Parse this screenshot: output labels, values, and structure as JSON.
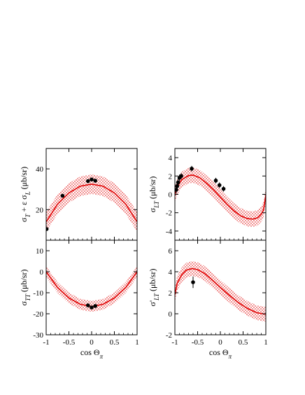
{
  "chart_data": [
    {
      "id": "sigma-t-l",
      "type": "scatter",
      "ylabel_main": "σ",
      "ylabel_parts": [
        {
          "t": "σ",
          "sub": false
        },
        {
          "t": "T",
          "sub": true
        },
        {
          "t": " + ε σ",
          "sub": false
        },
        {
          "t": "L",
          "sub": true
        },
        {
          "t": " (μb/sr)",
          "sub": false
        }
      ],
      "xlabel": "",
      "xlim": [
        -1,
        1
      ],
      "ylim": [
        5,
        50
      ],
      "yticks": [
        20,
        40
      ],
      "xticks": [
        -1,
        -0.5,
        0,
        0.5,
        1
      ],
      "show_xtick_labels": false,
      "points": [
        {
          "x": -0.99,
          "y": 10.5,
          "err": 0.8
        },
        {
          "x": -0.64,
          "y": 26.8,
          "err": 0.9
        },
        {
          "x": -0.08,
          "y": 34.0,
          "err": 0.9
        },
        {
          "x": 0.0,
          "y": 34.8,
          "err": 0.9
        },
        {
          "x": 0.08,
          "y": 34.2,
          "err": 0.9
        }
      ],
      "curve": [
        [
          -1,
          14.0
        ],
        [
          -0.75,
          22.7
        ],
        [
          -0.5,
          28.2
        ],
        [
          -0.25,
          31.5
        ],
        [
          0,
          32.5
        ],
        [
          0.25,
          31.5
        ],
        [
          0.5,
          28.2
        ],
        [
          0.75,
          22.7
        ],
        [
          1,
          14.0
        ]
      ],
      "band_halfwidth": 4.8
    },
    {
      "id": "sigma-lt",
      "type": "scatter",
      "ylabel_parts": [
        {
          "t": "σ",
          "sub": false
        },
        {
          "t": "LT",
          "sub": true
        },
        {
          "t": " (μb/sr)",
          "sub": false
        }
      ],
      "xlabel": "",
      "xlim": [
        -1,
        1
      ],
      "ylim": [
        -5,
        5
      ],
      "yticks": [
        -4,
        -2,
        0,
        2,
        4
      ],
      "xticks": [
        -1,
        -0.5,
        0,
        0.5,
        1
      ],
      "show_xtick_labels": false,
      "points": [
        {
          "x": -0.97,
          "y": 0.5,
          "err": 0.4
        },
        {
          "x": -0.95,
          "y": 0.9,
          "err": 0.4
        },
        {
          "x": -0.93,
          "y": 1.3,
          "err": 0.4
        },
        {
          "x": -0.9,
          "y": 1.8,
          "err": 0.35
        },
        {
          "x": -0.86,
          "y": 2.0,
          "err": 0.3
        },
        {
          "x": -0.63,
          "y": 2.8,
          "err": 0.3
        },
        {
          "x": -0.1,
          "y": 1.5,
          "err": 0.3
        },
        {
          "x": -0.02,
          "y": 1.0,
          "err": 0.3
        },
        {
          "x": 0.07,
          "y": 0.6,
          "err": 0.3
        }
      ],
      "curve": [
        [
          -1,
          0.0
        ],
        [
          -0.95,
          0.8
        ],
        [
          -0.85,
          1.6
        ],
        [
          -0.7,
          2.05
        ],
        [
          -0.6,
          2.1
        ],
        [
          -0.45,
          1.8
        ],
        [
          -0.3,
          1.2
        ],
        [
          -0.15,
          0.5
        ],
        [
          0,
          -0.3
        ],
        [
          0.15,
          -1.1
        ],
        [
          0.3,
          -1.8
        ],
        [
          0.45,
          -2.35
        ],
        [
          0.6,
          -2.65
        ],
        [
          0.72,
          -2.7
        ],
        [
          0.82,
          -2.55
        ],
        [
          0.9,
          -2.15
        ],
        [
          0.95,
          -1.7
        ],
        [
          1,
          -0.1
        ]
      ],
      "band_halfwidth": 0.85
    },
    {
      "id": "sigma-tt",
      "type": "scatter",
      "ylabel_parts": [
        {
          "t": "σ",
          "sub": false
        },
        {
          "t": "TT",
          "sub": true
        },
        {
          "t": " (μb/sr)",
          "sub": false
        }
      ],
      "xlabel_parts": [
        {
          "t": "cos Θ",
          "sub": false
        },
        {
          "t": "π",
          "sub": true
        }
      ],
      "xlim": [
        -1,
        1
      ],
      "ylim": [
        -30,
        15
      ],
      "yticks": [
        -30,
        -20,
        -10,
        0,
        10
      ],
      "xticks": [
        -1,
        -0.5,
        0,
        0.5,
        1
      ],
      "xtick_labels": [
        "-1",
        "-0.5",
        "0",
        "0.5",
        "1"
      ],
      "show_xtick_labels": true,
      "points": [
        {
          "x": -0.08,
          "y": -16.0,
          "err": 0.7
        },
        {
          "x": 0.0,
          "y": -17.0,
          "err": 0.7
        },
        {
          "x": 0.08,
          "y": -16.3,
          "err": 0.7
        }
      ],
      "curve": [
        [
          -1,
          0.0
        ],
        [
          -0.75,
          -7.5
        ],
        [
          -0.5,
          -12.5
        ],
        [
          -0.25,
          -15.5
        ],
        [
          0,
          -16.5
        ],
        [
          0.25,
          -15.5
        ],
        [
          0.5,
          -12.5
        ],
        [
          0.75,
          -7.5
        ],
        [
          1,
          0.0
        ]
      ],
      "band_halfwidth": 2.6
    },
    {
      "id": "sigma-prime-lt",
      "type": "scatter",
      "ylabel_parts": [
        {
          "t": "σ'",
          "sub": false
        },
        {
          "t": "LT",
          "sub": true
        },
        {
          "t": " (μb/sr)",
          "sub": false
        }
      ],
      "xlabel_parts": [
        {
          "t": "cos Θ",
          "sub": false
        },
        {
          "t": "π",
          "sub": true
        }
      ],
      "xlim": [
        -1,
        1
      ],
      "ylim": [
        -2,
        7
      ],
      "yticks": [
        -2,
        0,
        2,
        4,
        6
      ],
      "xticks": [
        -1,
        -0.5,
        0,
        0.5,
        1
      ],
      "xtick_labels": [
        "-1",
        "-0.5",
        "0",
        "0.5",
        "1"
      ],
      "show_xtick_labels": true,
      "points": [
        {
          "x": -0.6,
          "y": 3.0,
          "err": 0.55
        }
      ],
      "curve": [
        [
          -1,
          1.8
        ],
        [
          -0.95,
          2.9
        ],
        [
          -0.85,
          3.7
        ],
        [
          -0.75,
          4.15
        ],
        [
          -0.62,
          4.3
        ],
        [
          -0.5,
          4.2
        ],
        [
          -0.35,
          3.85
        ],
        [
          -0.2,
          3.3
        ],
        [
          0,
          2.5
        ],
        [
          0.2,
          1.75
        ],
        [
          0.4,
          1.05
        ],
        [
          0.6,
          0.5
        ],
        [
          0.8,
          0.1
        ],
        [
          1,
          -0.05
        ]
      ],
      "band_halfwidth": 0.7
    }
  ],
  "colors": {
    "curve": "#e00000",
    "band": "#f08080",
    "points": "#000000",
    "axis": "#000000"
  }
}
